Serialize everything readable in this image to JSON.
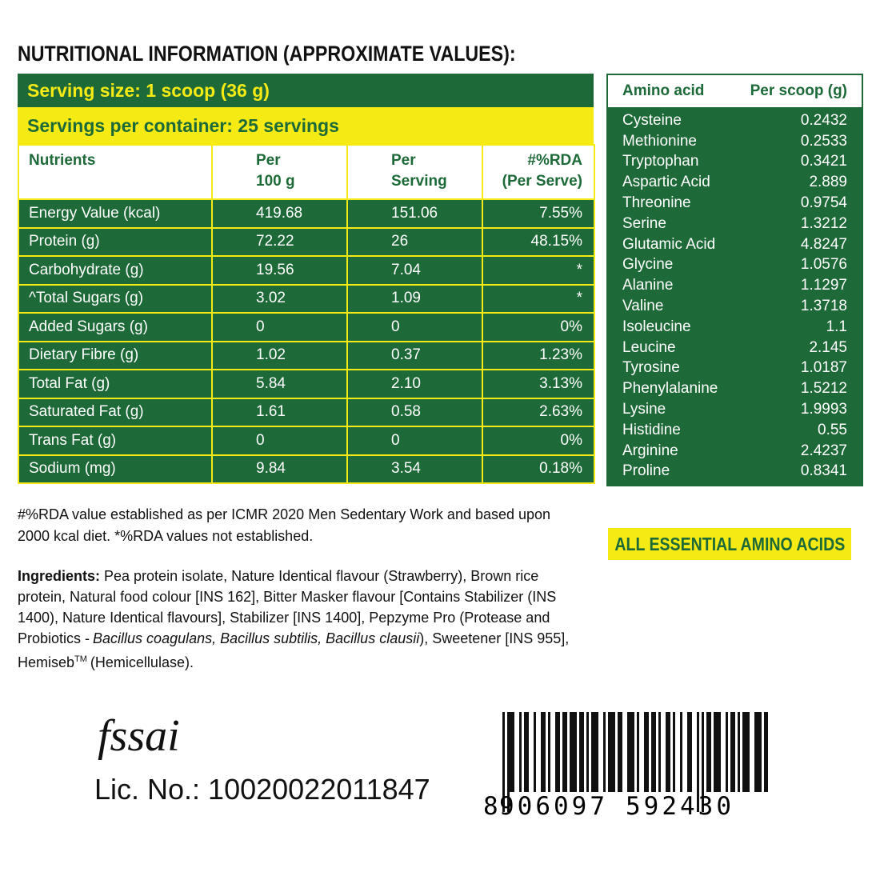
{
  "title": "NUTRITIONAL INFORMATION (APPROXIMATE VALUES):",
  "serving_size": "Serving size: 1 scoop (36 g)",
  "servings_per_container": "Servings per container: 25 servings",
  "nutrition_table": {
    "header": [
      [
        "Nutrients"
      ],
      [
        "Per",
        "100 g"
      ],
      [
        "Per",
        "Serving"
      ],
      [
        "#%RDA",
        "(Per Serve)"
      ]
    ],
    "rows": [
      [
        "Energy Value (kcal)",
        "419.68",
        "151.06",
        "7.55%"
      ],
      [
        "Protein (g)",
        "72.22",
        "26",
        "48.15%"
      ],
      [
        "Carbohydrate (g)",
        "19.56",
        "7.04",
        "*"
      ],
      [
        "^Total Sugars (g)",
        "3.02",
        "1.09",
        "*"
      ],
      [
        "Added Sugars (g)",
        "0",
        "0",
        "0%"
      ],
      [
        "Dietary Fibre (g)",
        "1.02",
        "0.37",
        "1.23%"
      ],
      [
        "Total Fat (g)",
        "5.84",
        "2.10",
        "3.13%"
      ],
      [
        "Saturated Fat (g)",
        "1.61",
        "0.58",
        "2.63%"
      ],
      [
        "Trans Fat (g)",
        "0",
        "0",
        "0%"
      ],
      [
        "Sodium (mg)",
        "9.84",
        "3.54",
        "0.18%"
      ]
    ]
  },
  "amino_table": {
    "header": [
      "Amino acid",
      "Per scoop (g)"
    ],
    "rows": [
      [
        "Cysteine",
        "0.2432"
      ],
      [
        "Methionine",
        "0.2533"
      ],
      [
        "Tryptophan",
        "0.3421"
      ],
      [
        "Aspartic Acid",
        "2.889"
      ],
      [
        "Threonine",
        "0.9754"
      ],
      [
        "Serine",
        "1.3212"
      ],
      [
        "Glutamic Acid",
        "4.8247"
      ],
      [
        "Glycine",
        "1.0576"
      ],
      [
        "Alanine",
        "1.1297"
      ],
      [
        "Valine",
        "1.3718"
      ],
      [
        "Isoleucine",
        "1.1"
      ],
      [
        "Leucine",
        "2.145"
      ],
      [
        "Tyrosine",
        "1.0187"
      ],
      [
        "Phenylalanine",
        "1.5212"
      ],
      [
        "Lysine",
        "1.9993"
      ],
      [
        "Histidine",
        "0.55"
      ],
      [
        "Arginine",
        "2.4237"
      ],
      [
        "Proline",
        "0.8341"
      ]
    ]
  },
  "badge": "ALL ESSENTIAL AMINO ACIDS",
  "footnote": [
    "#%RDA value established as per ICMR 2020 Men Sedentary Work and based upon",
    "2000 kcal diet. *%RDA values not established."
  ],
  "ingredients": {
    "label": "Ingredients:",
    "parts": [
      {
        "text": "Pea protein isolate, Nature Identical flavour (Strawberry), Brown rice protein, Natural food colour [INS 162], Bitter Masker flavour [Contains Stabilizer (INS 1400), Nature Identical flavours], Stabilizer [INS 1400], Pepzyme Pro (Protease and Probiotics -",
        "style": "plain"
      },
      {
        "text": "Bacillus coagulans, Bacillus subtilis, Bacillus clausii",
        "style": "italic"
      },
      {
        "text": "), Sweetener [INS 955], Hemiseb",
        "style": "plain"
      },
      {
        "text": "TM",
        "style": "sup"
      },
      {
        "text": "(Hemicellulase).",
        "style": "plain"
      }
    ]
  },
  "fssai_logo": "fssai",
  "license": "Lic. No.: 10020022011847",
  "barcode_digits": [
    "8",
    "906097",
    "592430"
  ]
}
